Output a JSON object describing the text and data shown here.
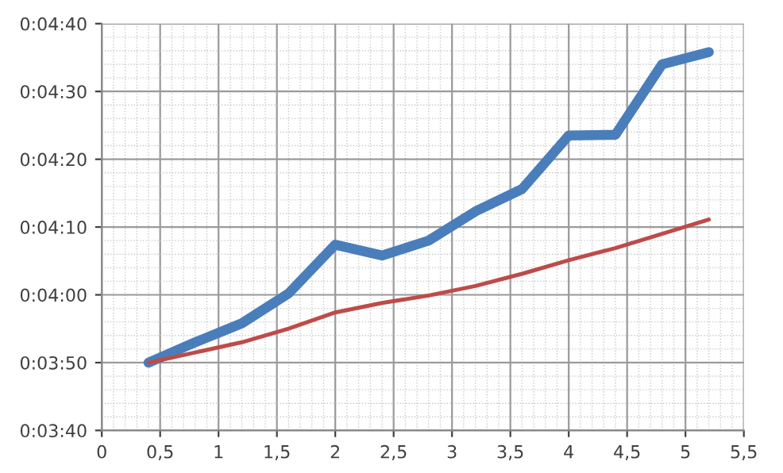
{
  "chart_data": {
    "type": "line",
    "x": [
      0.4,
      0.8,
      1.2,
      1.6,
      2,
      2.4,
      2.8,
      3.2,
      3.6,
      4,
      4.4,
      4.8,
      5.2
    ],
    "series": [
      {
        "color": "#4a7ebb",
        "values": [
          230,
          233,
          235.8,
          240.2,
          247.4,
          245.8,
          248,
          252.3,
          255.6,
          263.5,
          263.6,
          274,
          275.8
        ]
      },
      {
        "color": "#be4b48",
        "values": [
          230,
          231.5,
          233,
          235,
          237.4,
          238.8,
          239.9,
          241.3,
          243.1,
          245.1,
          246.9,
          249,
          251.1
        ]
      }
    ],
    "xlim": [
      0,
      5.5
    ],
    "xticks": [
      0,
      {
        "value": 0.5,
        "label": "0,5"
      },
      1,
      {
        "value": 1.5,
        "label": "1,5"
      },
      2,
      {
        "value": 2.5,
        "label": "2,5"
      },
      3,
      {
        "value": 3.5,
        "label": "3,5"
      },
      4,
      {
        "value": 4.5,
        "label": "4,5"
      },
      5,
      {
        "value": 5.5,
        "label": "5,5"
      }
    ],
    "ylim": [
      220,
      280
    ],
    "yticks": [
      {
        "value": 220,
        "label": "0:03:40"
      },
      {
        "value": 230,
        "label": "0:03:50"
      },
      {
        "value": 240,
        "label": "0:04:00"
      },
      {
        "value": 250,
        "label": "0:04:10"
      },
      {
        "value": 260,
        "label": "0:04:20"
      },
      {
        "value": 270,
        "label": "0:04:30"
      },
      {
        "value": 280,
        "label": "0:04:40"
      }
    ],
    "grid": true,
    "marker": "none",
    "line_style": "solid"
  }
}
